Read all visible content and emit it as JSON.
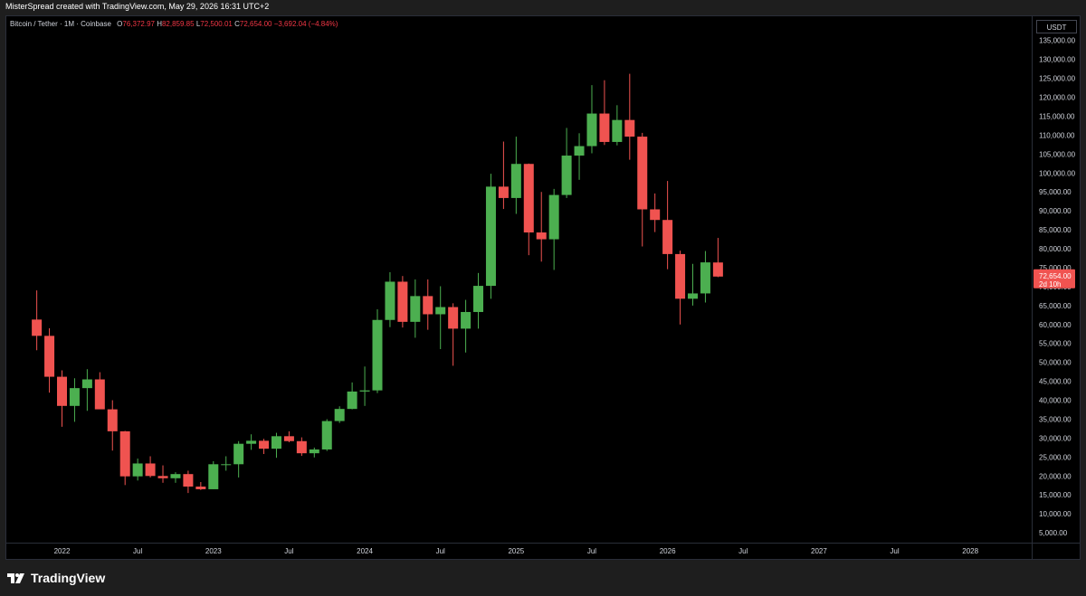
{
  "attribution": "MisterSpread created with TradingView.com, May 29, 2026 16:31 UTC+2",
  "legend": {
    "symbol": "Bitcoin / Tether · 1M · Coinbase",
    "open_label": "O",
    "open": "76,372.97",
    "high_label": "H",
    "high": "82,859.85",
    "low_label": "L",
    "low": "72,500.01",
    "close_label": "C",
    "close": "72,654.00",
    "change": "−3,692.04 (−4.84%)"
  },
  "currency_button": "USDT",
  "price_tag": {
    "price": "72,654.00",
    "countdown": "2d 10h"
  },
  "footer": {
    "brand": "TradingView"
  },
  "colors": {
    "up": "#4caf50",
    "down": "#f05350",
    "background": "#000000",
    "text": "#d1d4dc"
  },
  "chart_data": {
    "type": "candlestick",
    "interval": "1M",
    "yticks": [
      "5,000.00",
      "10,000.00",
      "15,000.00",
      "20,000.00",
      "25,000.00",
      "30,000.00",
      "35,000.00",
      "40,000.00",
      "45,000.00",
      "50,000.00",
      "55,000.00",
      "60,000.00",
      "65,000.00",
      "70,000.00",
      "75,000.00",
      "80,000.00",
      "85,000.00",
      "90,000.00",
      "95,000.00",
      "100,000.00",
      "105,000.00",
      "110,000.00",
      "115,000.00",
      "120,000.00",
      "125,000.00",
      "130,000.00",
      "135,000.00"
    ],
    "ylim": [
      2000,
      138000
    ],
    "xticks": [
      {
        "label": "2022",
        "date": "2022-01"
      },
      {
        "label": "Jul",
        "date": "2022-07"
      },
      {
        "label": "2023",
        "date": "2023-01"
      },
      {
        "label": "Jul",
        "date": "2023-07"
      },
      {
        "label": "2024",
        "date": "2024-01"
      },
      {
        "label": "Jul",
        "date": "2024-07"
      },
      {
        "label": "2025",
        "date": "2025-01"
      },
      {
        "label": "Jul",
        "date": "2025-07"
      },
      {
        "label": "2026",
        "date": "2026-01"
      },
      {
        "label": "Jul",
        "date": "2026-07"
      },
      {
        "label": "2027",
        "date": "2027-01"
      },
      {
        "label": "Jul",
        "date": "2027-07"
      },
      {
        "label": "2028",
        "date": "2028-01"
      }
    ],
    "candles": [
      {
        "date": "2021-11",
        "o": 61300,
        "h": 69000,
        "l": 53200,
        "c": 57000
      },
      {
        "date": "2021-12",
        "o": 57000,
        "h": 59000,
        "l": 42000,
        "c": 46200
      },
      {
        "date": "2022-01",
        "o": 46200,
        "h": 47900,
        "l": 33000,
        "c": 38500
      },
      {
        "date": "2022-02",
        "o": 38500,
        "h": 45800,
        "l": 34300,
        "c": 43200
      },
      {
        "date": "2022-03",
        "o": 43200,
        "h": 48200,
        "l": 37200,
        "c": 45500
      },
      {
        "date": "2022-04",
        "o": 45500,
        "h": 47400,
        "l": 37700,
        "c": 37600
      },
      {
        "date": "2022-05",
        "o": 37600,
        "h": 40000,
        "l": 26700,
        "c": 31800
      },
      {
        "date": "2022-06",
        "o": 31800,
        "h": 31900,
        "l": 17600,
        "c": 19900
      },
      {
        "date": "2022-07",
        "o": 19900,
        "h": 24600,
        "l": 18800,
        "c": 23300
      },
      {
        "date": "2022-08",
        "o": 23300,
        "h": 25200,
        "l": 19600,
        "c": 20000
      },
      {
        "date": "2022-09",
        "o": 20000,
        "h": 22800,
        "l": 18200,
        "c": 19400
      },
      {
        "date": "2022-10",
        "o": 19400,
        "h": 21000,
        "l": 18200,
        "c": 20500
      },
      {
        "date": "2022-11",
        "o": 20500,
        "h": 21400,
        "l": 15500,
        "c": 17200
      },
      {
        "date": "2022-12",
        "o": 17200,
        "h": 18400,
        "l": 16300,
        "c": 16500
      },
      {
        "date": "2023-01",
        "o": 16500,
        "h": 23900,
        "l": 16500,
        "c": 23100
      },
      {
        "date": "2023-02",
        "o": 23100,
        "h": 25200,
        "l": 21400,
        "c": 23100
      },
      {
        "date": "2023-03",
        "o": 23100,
        "h": 29200,
        "l": 19600,
        "c": 28500
      },
      {
        "date": "2023-04",
        "o": 28500,
        "h": 31000,
        "l": 26900,
        "c": 29300
      },
      {
        "date": "2023-05",
        "o": 29300,
        "h": 29800,
        "l": 25800,
        "c": 27200
      },
      {
        "date": "2023-06",
        "o": 27200,
        "h": 31400,
        "l": 24800,
        "c": 30500
      },
      {
        "date": "2023-07",
        "o": 30500,
        "h": 31800,
        "l": 28900,
        "c": 29200
      },
      {
        "date": "2023-08",
        "o": 29200,
        "h": 30200,
        "l": 25300,
        "c": 26000
      },
      {
        "date": "2023-09",
        "o": 26000,
        "h": 27500,
        "l": 24900,
        "c": 27000
      },
      {
        "date": "2023-10",
        "o": 27000,
        "h": 35000,
        "l": 26600,
        "c": 34500
      },
      {
        "date": "2023-11",
        "o": 34500,
        "h": 38400,
        "l": 34000,
        "c": 37700
      },
      {
        "date": "2023-12",
        "o": 37700,
        "h": 44700,
        "l": 37600,
        "c": 42300
      },
      {
        "date": "2024-01",
        "o": 42300,
        "h": 48900,
        "l": 38500,
        "c": 42600
      },
      {
        "date": "2024-02",
        "o": 42600,
        "h": 64000,
        "l": 41900,
        "c": 61200
      },
      {
        "date": "2024-03",
        "o": 61200,
        "h": 73800,
        "l": 59300,
        "c": 71300
      },
      {
        "date": "2024-04",
        "o": 71300,
        "h": 72800,
        "l": 59200,
        "c": 60700
      },
      {
        "date": "2024-05",
        "o": 60700,
        "h": 71900,
        "l": 56500,
        "c": 67500
      },
      {
        "date": "2024-06",
        "o": 67500,
        "h": 71900,
        "l": 58600,
        "c": 62700
      },
      {
        "date": "2024-07",
        "o": 62700,
        "h": 70100,
        "l": 53500,
        "c": 64600
      },
      {
        "date": "2024-08",
        "o": 64600,
        "h": 65600,
        "l": 49100,
        "c": 58900
      },
      {
        "date": "2024-09",
        "o": 58900,
        "h": 66500,
        "l": 52600,
        "c": 63300
      },
      {
        "date": "2024-10",
        "o": 63300,
        "h": 73600,
        "l": 58900,
        "c": 70200
      },
      {
        "date": "2024-11",
        "o": 70200,
        "h": 99800,
        "l": 66800,
        "c": 96400
      },
      {
        "date": "2024-12",
        "o": 96400,
        "h": 108300,
        "l": 90500,
        "c": 93400
      },
      {
        "date": "2025-01",
        "o": 93400,
        "h": 109600,
        "l": 89200,
        "c": 102400
      },
      {
        "date": "2025-02",
        "o": 102400,
        "h": 102500,
        "l": 78300,
        "c": 84300
      },
      {
        "date": "2025-03",
        "o": 84300,
        "h": 95000,
        "l": 76600,
        "c": 82500
      },
      {
        "date": "2025-04",
        "o": 82500,
        "h": 95800,
        "l": 74400,
        "c": 94200
      },
      {
        "date": "2025-05",
        "o": 94200,
        "h": 111900,
        "l": 93400,
        "c": 104600
      },
      {
        "date": "2025-06",
        "o": 104600,
        "h": 110500,
        "l": 98200,
        "c": 107100
      },
      {
        "date": "2025-07",
        "o": 107100,
        "h": 123200,
        "l": 105200,
        "c": 115700
      },
      {
        "date": "2025-08",
        "o": 115700,
        "h": 124500,
        "l": 107400,
        "c": 108200
      },
      {
        "date": "2025-09",
        "o": 108200,
        "h": 117900,
        "l": 107300,
        "c": 114000
      },
      {
        "date": "2025-10",
        "o": 114000,
        "h": 126200,
        "l": 103500,
        "c": 109600
      },
      {
        "date": "2025-11",
        "o": 109600,
        "h": 110600,
        "l": 80600,
        "c": 90400
      },
      {
        "date": "2025-12",
        "o": 90400,
        "h": 94600,
        "l": 84400,
        "c": 87600
      },
      {
        "date": "2026-01",
        "o": 87600,
        "h": 97900,
        "l": 74600,
        "c": 78600
      },
      {
        "date": "2026-02",
        "o": 78600,
        "h": 79500,
        "l": 60000,
        "c": 66800
      },
      {
        "date": "2026-03",
        "o": 66800,
        "h": 76000,
        "l": 65000,
        "c": 68200
      },
      {
        "date": "2026-04",
        "o": 68200,
        "h": 79400,
        "l": 65800,
        "c": 76400
      },
      {
        "date": "2026-05",
        "o": 76373,
        "h": 82860,
        "l": 72500,
        "c": 72654
      }
    ]
  }
}
